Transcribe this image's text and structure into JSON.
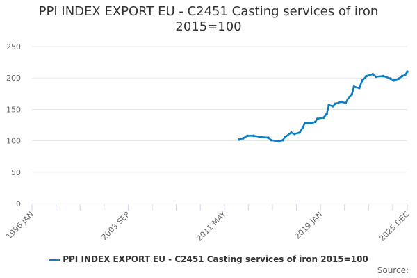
{
  "chart_data": {
    "type": "line",
    "title": "PPI INDEX EXPORT EU - C2451 Casting services of iron",
    "subtitle": "2015=100",
    "xlabel": "",
    "ylabel": "",
    "ylim": [
      0,
      250
    ],
    "yticks": [
      0,
      50,
      100,
      150,
      200,
      250
    ],
    "xlim": [
      "1996-01",
      "2025-12"
    ],
    "xtick_labels": [
      "1996 JAN",
      "2003 SEP",
      "2011 MAY",
      "2019 JAN",
      "2025 DEC"
    ],
    "grid": true,
    "legend": "bottom",
    "color": "#0a7cc2",
    "series": [
      {
        "name": "PPI INDEX EXPORT EU - C2451 Casting services of iron 2015=100",
        "x": [
          "2012-07",
          "2012-11",
          "2013-03",
          "2013-09",
          "2014-04",
          "2014-11",
          "2015-02",
          "2015-09",
          "2016-01",
          "2016-03",
          "2016-09",
          "2016-12",
          "2017-05",
          "2017-08",
          "2017-10",
          "2018-04",
          "2018-08",
          "2018-10",
          "2019-04",
          "2019-07",
          "2019-09",
          "2020-01",
          "2020-03",
          "2020-09",
          "2021-01",
          "2021-04",
          "2021-07",
          "2021-09",
          "2022-02",
          "2022-05",
          "2022-09",
          "2023-03",
          "2023-06",
          "2024-01",
          "2024-08",
          "2024-11",
          "2025-04",
          "2025-07",
          "2025-10",
          "2025-12"
        ],
        "values": [
          102,
          104,
          108,
          108,
          106,
          105,
          101,
          99,
          101,
          106,
          113,
          111,
          113,
          121,
          128,
          128,
          130,
          135,
          137,
          143,
          157,
          155,
          159,
          162,
          160,
          169,
          174,
          186,
          184,
          196,
          203,
          206,
          202,
          203,
          199,
          196,
          199,
          203,
          205,
          210
        ]
      }
    ]
  },
  "source_label": "Source:"
}
